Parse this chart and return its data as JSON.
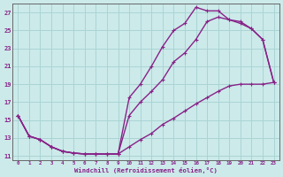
{
  "xlabel": "Windchill (Refroidissement éolien,°C)",
  "bg_color": "#cceaea",
  "grid_color": "#aad4d4",
  "line_color": "#882288",
  "xlim": [
    -0.5,
    23.5
  ],
  "ylim": [
    10.5,
    28.0
  ],
  "xticks": [
    0,
    1,
    2,
    3,
    4,
    5,
    6,
    7,
    8,
    9,
    10,
    11,
    12,
    13,
    14,
    15,
    16,
    17,
    18,
    19,
    20,
    21,
    22,
    23
  ],
  "yticks": [
    11,
    13,
    15,
    17,
    19,
    21,
    23,
    25,
    27
  ],
  "curve1_x": [
    0,
    1,
    2,
    3,
    4,
    5,
    6,
    7,
    8,
    9,
    10,
    11,
    12,
    13,
    14,
    15,
    16,
    17,
    18,
    19,
    20,
    21,
    22,
    23
  ],
  "curve1_y": [
    15.5,
    13.2,
    12.8,
    12.0,
    11.5,
    11.3,
    11.2,
    11.2,
    11.2,
    11.2,
    17.5,
    19.0,
    21.0,
    23.2,
    25.0,
    25.8,
    27.6,
    27.2,
    27.2,
    26.2,
    26.0,
    25.2,
    24.0,
    19.2
  ],
  "curve2_x": [
    0,
    1,
    2,
    3,
    4,
    5,
    6,
    7,
    8,
    9,
    10,
    11,
    12,
    13,
    14,
    15,
    16,
    17,
    18,
    19,
    20,
    21,
    22,
    23
  ],
  "curve2_y": [
    15.5,
    13.2,
    12.8,
    12.0,
    11.5,
    11.3,
    11.2,
    11.2,
    11.2,
    11.2,
    15.5,
    17.0,
    18.2,
    19.5,
    21.5,
    22.5,
    24.0,
    26.0,
    26.5,
    26.2,
    25.8,
    25.2,
    24.0,
    19.2
  ],
  "curve3_x": [
    0,
    1,
    2,
    3,
    4,
    5,
    6,
    7,
    8,
    9,
    10,
    11,
    12,
    13,
    14,
    15,
    16,
    17,
    18,
    19,
    20,
    21,
    22,
    23
  ],
  "curve3_y": [
    15.5,
    13.2,
    12.8,
    12.0,
    11.5,
    11.3,
    11.2,
    11.2,
    11.2,
    11.2,
    12.0,
    12.8,
    13.5,
    14.5,
    15.2,
    16.0,
    16.8,
    17.5,
    18.2,
    18.8,
    19.0,
    19.0,
    19.0,
    19.2
  ]
}
